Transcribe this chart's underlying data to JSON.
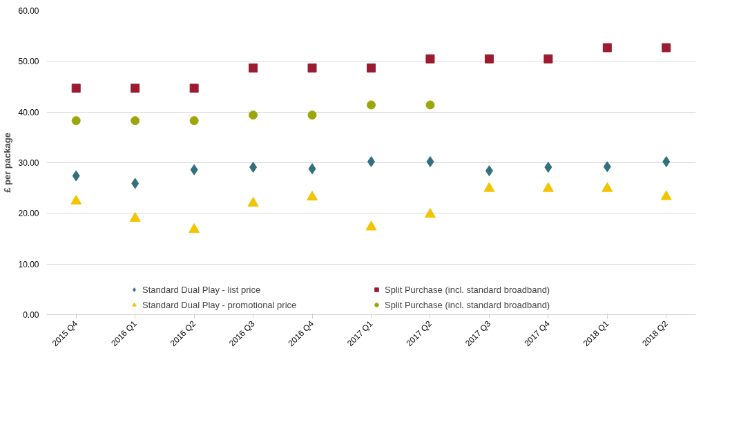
{
  "chart_data": {
    "type": "scatter",
    "ylabel": "£ per package",
    "categories": [
      "2015 Q4",
      "2016 Q1",
      "2016 Q2",
      "2016 Q3",
      "2016 Q4",
      "2017 Q1",
      "2017 Q2",
      "2017 Q3",
      "2017 Q4",
      "2018 Q1",
      "2018 Q2"
    ],
    "ylim": [
      0,
      60
    ],
    "yticks": [
      {
        "value": 0,
        "label": "0.00"
      },
      {
        "value": 10,
        "label": "10.00"
      },
      {
        "value": 20,
        "label": "20.00"
      },
      {
        "value": 30,
        "label": "30.00"
      },
      {
        "value": 40,
        "label": "40.00"
      },
      {
        "value": 50,
        "label": "50.00"
      },
      {
        "value": 60,
        "label": "60.00"
      }
    ],
    "grid": "y",
    "legend": "bottom",
    "series": [
      {
        "name": "Standard Dual Play - list price",
        "color": "#31707e",
        "marker": "diamond",
        "values": [
          27.4,
          25.9,
          28.6,
          29.1,
          28.8,
          30.2,
          30.2,
          28.4,
          29.1,
          29.2,
          30.2
        ]
      },
      {
        "name": "Standard Dual Play - promotional price",
        "color": "#f2c500",
        "marker": "triangle",
        "values": [
          22.4,
          19.0,
          16.8,
          22.0,
          23.2,
          17.3,
          19.8,
          24.9,
          24.9,
          24.9,
          23.3
        ]
      },
      {
        "name": "Split Purchase (incl. standard broadband)",
        "color": "#9b1b30",
        "marker": "square",
        "values": [
          44.7,
          44.7,
          44.7,
          48.7,
          48.7,
          48.7,
          50.5,
          50.5,
          50.5,
          52.7,
          52.7
        ]
      },
      {
        "name": "Split Purchase (incl. standard broadband)",
        "color": "#9ca60a",
        "marker": "circle",
        "values": [
          38.3,
          38.3,
          38.3,
          39.4,
          39.4,
          41.4,
          41.4,
          null,
          null,
          null,
          null
        ]
      }
    ]
  }
}
